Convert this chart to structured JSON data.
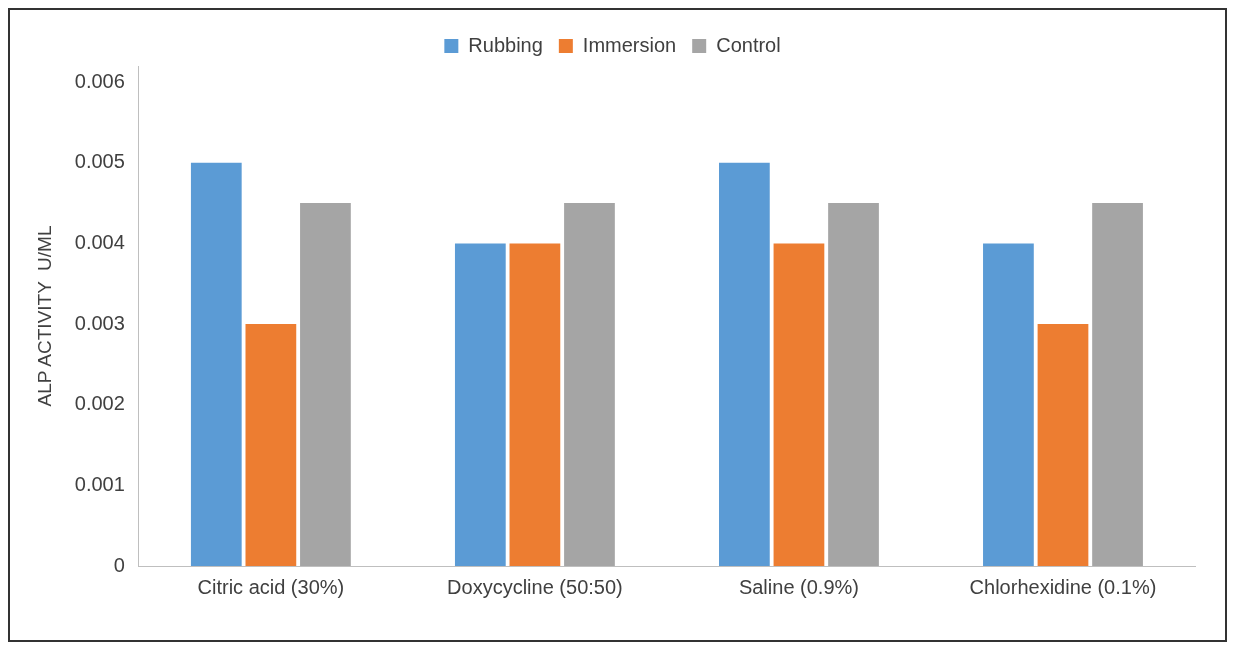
{
  "chart_data": {
    "type": "bar",
    "categories": [
      "Citric acid (30%)",
      "Doxycycline (50:50)",
      "Saline (0.9%)",
      "Chlorhexidine (0.1%)"
    ],
    "series": [
      {
        "name": "Rubbing",
        "color": "#5b9bd5",
        "values": [
          0.005,
          0.004,
          0.005,
          0.004
        ]
      },
      {
        "name": "Immersion",
        "color": "#ed7d31",
        "values": [
          0.003,
          0.004,
          0.004,
          0.003
        ]
      },
      {
        "name": "Control",
        "color": "#a5a5a5",
        "values": [
          0.0045,
          0.0045,
          0.0045,
          0.0045
        ]
      }
    ],
    "ylabel": "ALP ACTIVITY  U/ML",
    "ylim": [
      0,
      0.0062
    ],
    "yticks": [
      0,
      0.001,
      0.002,
      0.003,
      0.004,
      0.005,
      0.006
    ],
    "grid": false,
    "legend": "top"
  }
}
